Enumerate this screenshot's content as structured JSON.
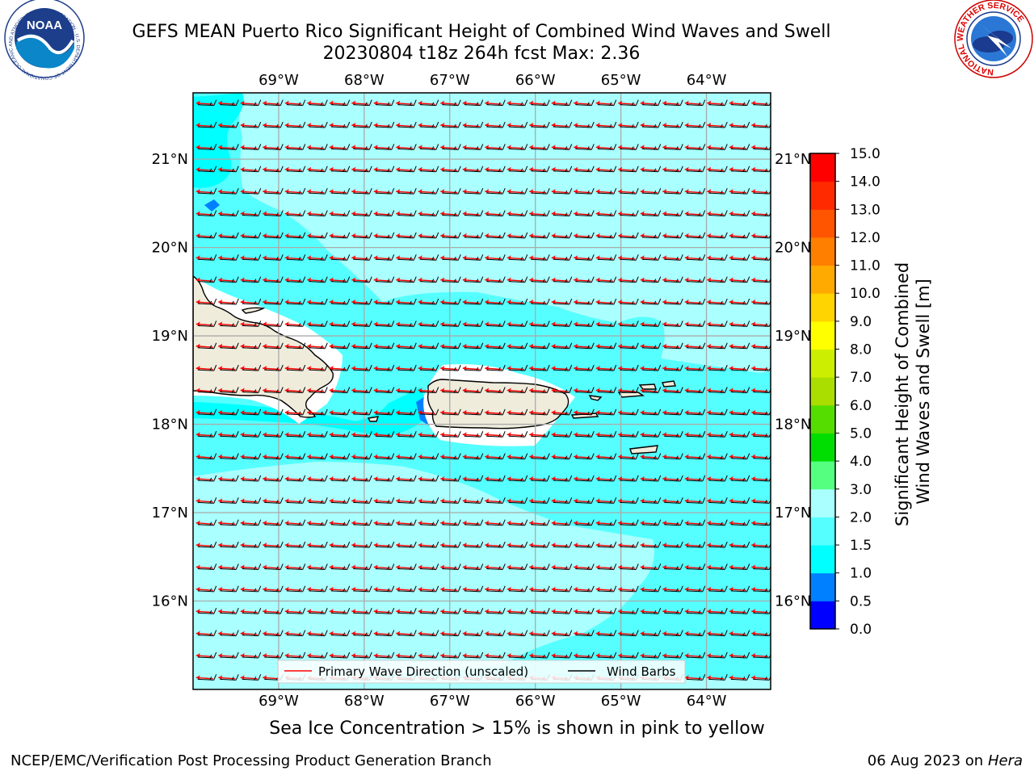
{
  "header": {
    "title_line1": "GEFS MEAN Puerto Rico Significant Height of Combined Wind Waves and Swell",
    "title_line2": "20230804 t18z 264h fcst   Max: 2.36"
  },
  "logos": {
    "left": {
      "name": "noaa-logo",
      "text": "NOAA",
      "ring_text": "NATIONAL OCEANIC AND ATMOSPHERIC ADMINISTRATION · U.S. DEPARTMENT OF COMMERCE"
    },
    "right": {
      "name": "nws-logo",
      "ring_text": "NATIONAL WEATHER SERVICE"
    }
  },
  "map": {
    "lon_labels": [
      "69°W",
      "68°W",
      "67°W",
      "66°W",
      "65°W",
      "64°W"
    ],
    "lat_labels": [
      "21°N",
      "20°N",
      "19°N",
      "18°N",
      "17°N",
      "16°N"
    ],
    "lon_range": [
      -70.0,
      -63.25
    ],
    "lat_range": [
      15.0,
      21.75
    ],
    "colors": {
      "land": "#efecdc",
      "cat_0_5_1_0": "#0080ff",
      "cat_1_0_1_5": "#00ffff",
      "cat_1_5_2_0": "#55ffff",
      "cat_2_0_3_0": "#aaffff",
      "wave_arrow": "#ff0000",
      "wind_barb": "#000000",
      "grid": "#aaaaaa"
    },
    "legend": {
      "wave_label": "Primary Wave Direction (unscaled)",
      "barb_label": "Wind Barbs"
    }
  },
  "colorbar": {
    "label_line1": "Significant Height of Combined",
    "label_line2": "Wind Waves and Swell [m]",
    "ticks": [
      "0.0",
      "0.5",
      "1.0",
      "1.5",
      "2.0",
      "3.0",
      "4.0",
      "5.0",
      "6.0",
      "7.0",
      "8.0",
      "9.0",
      "10.0",
      "11.0",
      "12.0",
      "13.0",
      "14.0",
      "15.0"
    ],
    "colors": [
      "#0000ff",
      "#0080ff",
      "#00ffff",
      "#55ffff",
      "#aaffff",
      "#55ff80",
      "#00dd00",
      "#55dd00",
      "#aadd00",
      "#ccee00",
      "#ffff00",
      "#ffd400",
      "#ffaa00",
      "#ff8000",
      "#ff5500",
      "#ff2a00",
      "#ff0000"
    ]
  },
  "footer": {
    "ice_note": "Sea Ice Concentration > 15% is shown in pink to yellow",
    "credit_left": "NCEP/EMC/Verification Post Processing Product Generation Branch",
    "credit_date": "06 Aug 2023 on",
    "credit_host": "Hera"
  }
}
